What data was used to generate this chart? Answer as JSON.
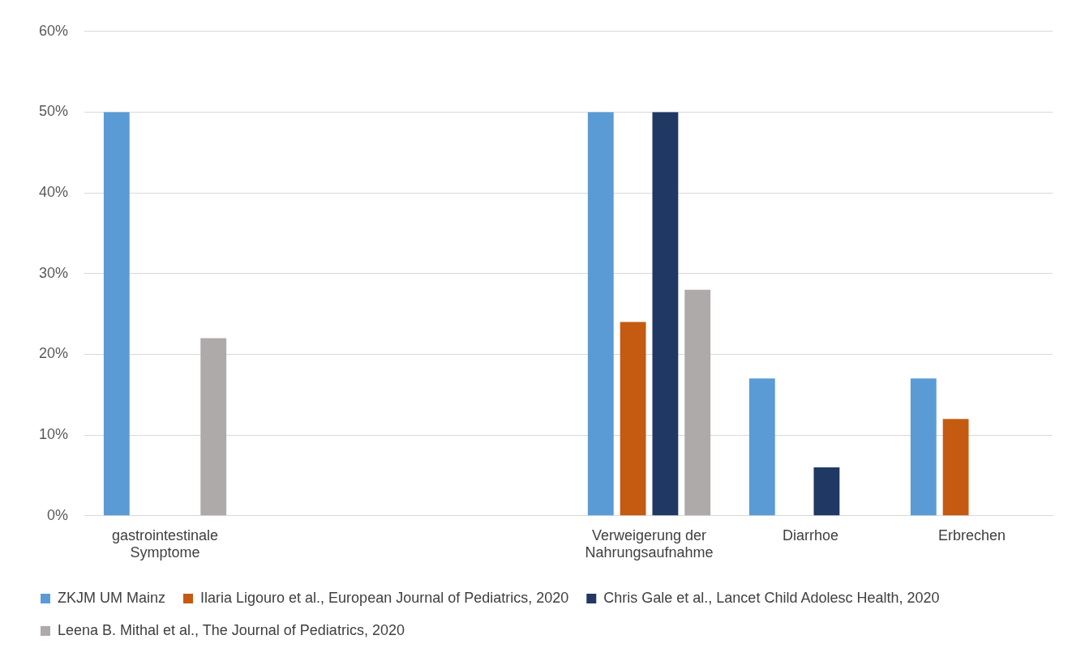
{
  "chart_data": {
    "type": "bar",
    "categories": [
      "gastrointestinale Symptome",
      null,
      null,
      "Verweigerung der Nahrungsaufnahme",
      "Diarrhoe",
      "Erbrechen"
    ],
    "series": [
      {
        "name": "ZKJM UM Mainz",
        "color": "#5b9bd5",
        "values": [
          50,
          null,
          null,
          50,
          17,
          17
        ]
      },
      {
        "name": "Ilaria Ligouro et al., European Journal of Pediatrics, 2020",
        "color": "#c55a11",
        "values": [
          null,
          null,
          null,
          24,
          null,
          12
        ]
      },
      {
        "name": "Chris Gale et al., Lancet Child Adolesc Health, 2020",
        "color": "#203864",
        "values": [
          null,
          null,
          null,
          50,
          6,
          null
        ]
      },
      {
        "name": "Leena B. Mithal et al., The Journal of Pediatrics, 2020",
        "color": "#aeaaaa",
        "values": [
          22,
          null,
          null,
          28,
          null,
          null
        ]
      }
    ],
    "ylim": [
      0,
      60
    ],
    "yticks": [
      {
        "value": 0,
        "label": "0%"
      },
      {
        "value": 10,
        "label": "10%"
      },
      {
        "value": 20,
        "label": "20%"
      },
      {
        "value": 30,
        "label": "30%"
      },
      {
        "value": 40,
        "label": "40%"
      },
      {
        "value": 50,
        "label": "50%"
      },
      {
        "value": 60,
        "label": "60%"
      }
    ],
    "grid": "y",
    "legend": "bottom"
  }
}
